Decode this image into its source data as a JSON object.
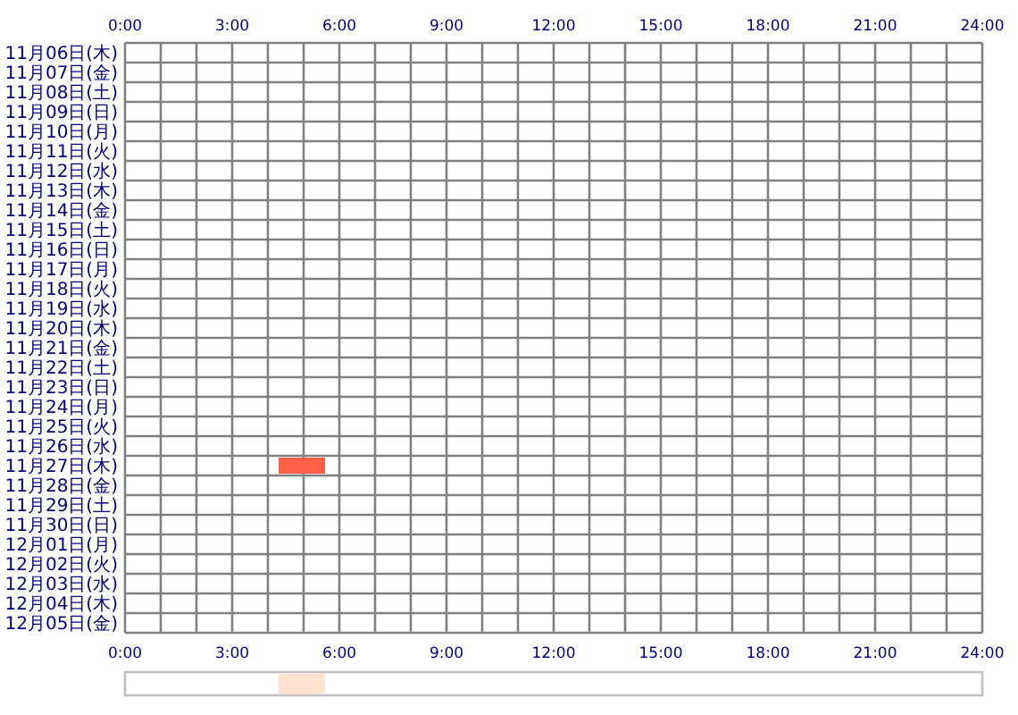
{
  "chart_data": [
    {
      "type": "bar",
      "orientation": "horizontal",
      "categories": [
        "11月06日(木)",
        "11月07日(金)",
        "11月08日(土)",
        "11月09日(日)",
        "11月10日(月)",
        "11月11日(火)",
        "11月12日(水)",
        "11月13日(木)",
        "11月14日(金)",
        "11月15日(土)",
        "11月16日(日)",
        "11月17日(月)",
        "11月18日(火)",
        "11月19日(水)",
        "11月20日(木)",
        "11月21日(金)",
        "11月22日(土)",
        "11月23日(日)",
        "11月24日(月)",
        "11月25日(火)",
        "11月26日(水)",
        "11月27日(木)",
        "11月28日(金)",
        "11月29日(土)",
        "11月30日(日)",
        "12月01日(月)",
        "12月02日(火)",
        "12月03日(水)",
        "12月04日(木)",
        "12月05日(金)"
      ],
      "base": [
        null,
        null,
        null,
        null,
        null,
        null,
        null,
        null,
        null,
        null,
        null,
        null,
        null,
        null,
        null,
        null,
        null,
        null,
        null,
        null,
        null,
        4.3,
        null,
        null,
        null,
        null,
        null,
        null,
        null,
        null
      ],
      "values": [
        null,
        null,
        null,
        null,
        null,
        null,
        null,
        null,
        null,
        null,
        null,
        null,
        null,
        null,
        null,
        null,
        null,
        null,
        null,
        null,
        null,
        1.3,
        null,
        null,
        null,
        null,
        null,
        null,
        null,
        null
      ],
      "color": "#ff5f45",
      "xlim": [
        0,
        24
      ],
      "xticks": [
        {
          "value": 0,
          "label": "0:00"
        },
        {
          "value": 1,
          "label": null
        },
        {
          "value": 2,
          "label": null
        },
        {
          "value": 3,
          "label": "3:00"
        },
        {
          "value": 4,
          "label": null
        },
        {
          "value": 5,
          "label": null
        },
        {
          "value": 6,
          "label": "6:00"
        },
        {
          "value": 7,
          "label": null
        },
        {
          "value": 8,
          "label": null
        },
        {
          "value": 9,
          "label": "9:00"
        },
        {
          "value": 10,
          "label": null
        },
        {
          "value": 11,
          "label": null
        },
        {
          "value": 12,
          "label": "12:00"
        },
        {
          "value": 13,
          "label": null
        },
        {
          "value": 14,
          "label": null
        },
        {
          "value": 15,
          "label": "15:00"
        },
        {
          "value": 16,
          "label": null
        },
        {
          "value": 17,
          "label": null
        },
        {
          "value": 18,
          "label": "18:00"
        },
        {
          "value": 19,
          "label": null
        },
        {
          "value": 20,
          "label": null
        },
        {
          "value": 21,
          "label": "21:00"
        },
        {
          "value": 22,
          "label": null
        },
        {
          "value": 23,
          "label": null
        },
        {
          "value": 24,
          "label": "24:00"
        }
      ],
      "x2lim": [
        0,
        24
      ],
      "x2ticks": [
        {
          "value": 0,
          "label": "0:00"
        },
        {
          "value": 1,
          "label": null
        },
        {
          "value": 2,
          "label": null
        },
        {
          "value": 3,
          "label": "3:00"
        },
        {
          "value": 4,
          "label": null
        },
        {
          "value": 5,
          "label": null
        },
        {
          "value": 6,
          "label": "6:00"
        },
        {
          "value": 7,
          "label": null
        },
        {
          "value": 8,
          "label": null
        },
        {
          "value": 9,
          "label": "9:00"
        },
        {
          "value": 10,
          "label": null
        },
        {
          "value": 11,
          "label": null
        },
        {
          "value": 12,
          "label": "12:00"
        },
        {
          "value": 13,
          "label": null
        },
        {
          "value": 14,
          "label": null
        },
        {
          "value": 15,
          "label": "15:00"
        },
        {
          "value": 16,
          "label": null
        },
        {
          "value": 17,
          "label": null
        },
        {
          "value": 18,
          "label": "18:00"
        },
        {
          "value": 19,
          "label": null
        },
        {
          "value": 20,
          "label": null
        },
        {
          "value": 21,
          "label": "21:00"
        },
        {
          "value": 22,
          "label": null
        },
        {
          "value": 23,
          "label": null
        },
        {
          "value": 24,
          "label": "24:00"
        }
      ],
      "grid": true
    },
    {
      "type": "bar",
      "orientation": "horizontal",
      "categories": [
        null
      ],
      "base": [
        4.3
      ],
      "values": [
        1.3
      ],
      "color": "#ffe2cf",
      "xlim": [
        0,
        24
      ]
    }
  ]
}
